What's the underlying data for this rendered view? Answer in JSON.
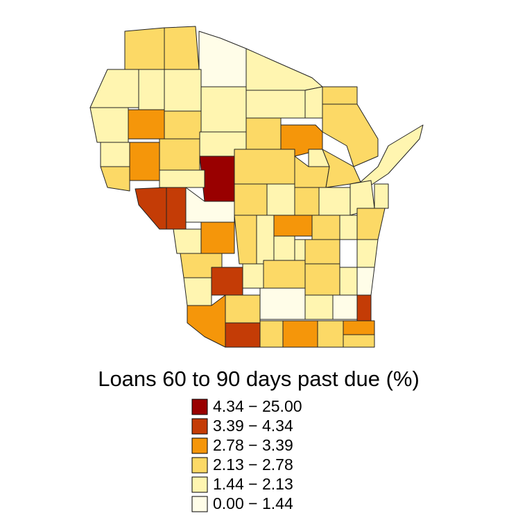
{
  "title": "Loans 60 to 90 days past due (%)",
  "legend": {
    "items": [
      {
        "label": "4.34 − 25.00",
        "color": "#990000"
      },
      {
        "label": "3.39 − 4.34",
        "color": "#c43c06"
      },
      {
        "label": "2.78 − 3.39",
        "color": "#f5960a"
      },
      {
        "label": "2.13 − 2.78",
        "color": "#fcd966"
      },
      {
        "label": "1.44 − 2.13",
        "color": "#fff5b0"
      },
      {
        "label": "0.00 − 1.44",
        "color": "#fffde8"
      }
    ]
  }
}
